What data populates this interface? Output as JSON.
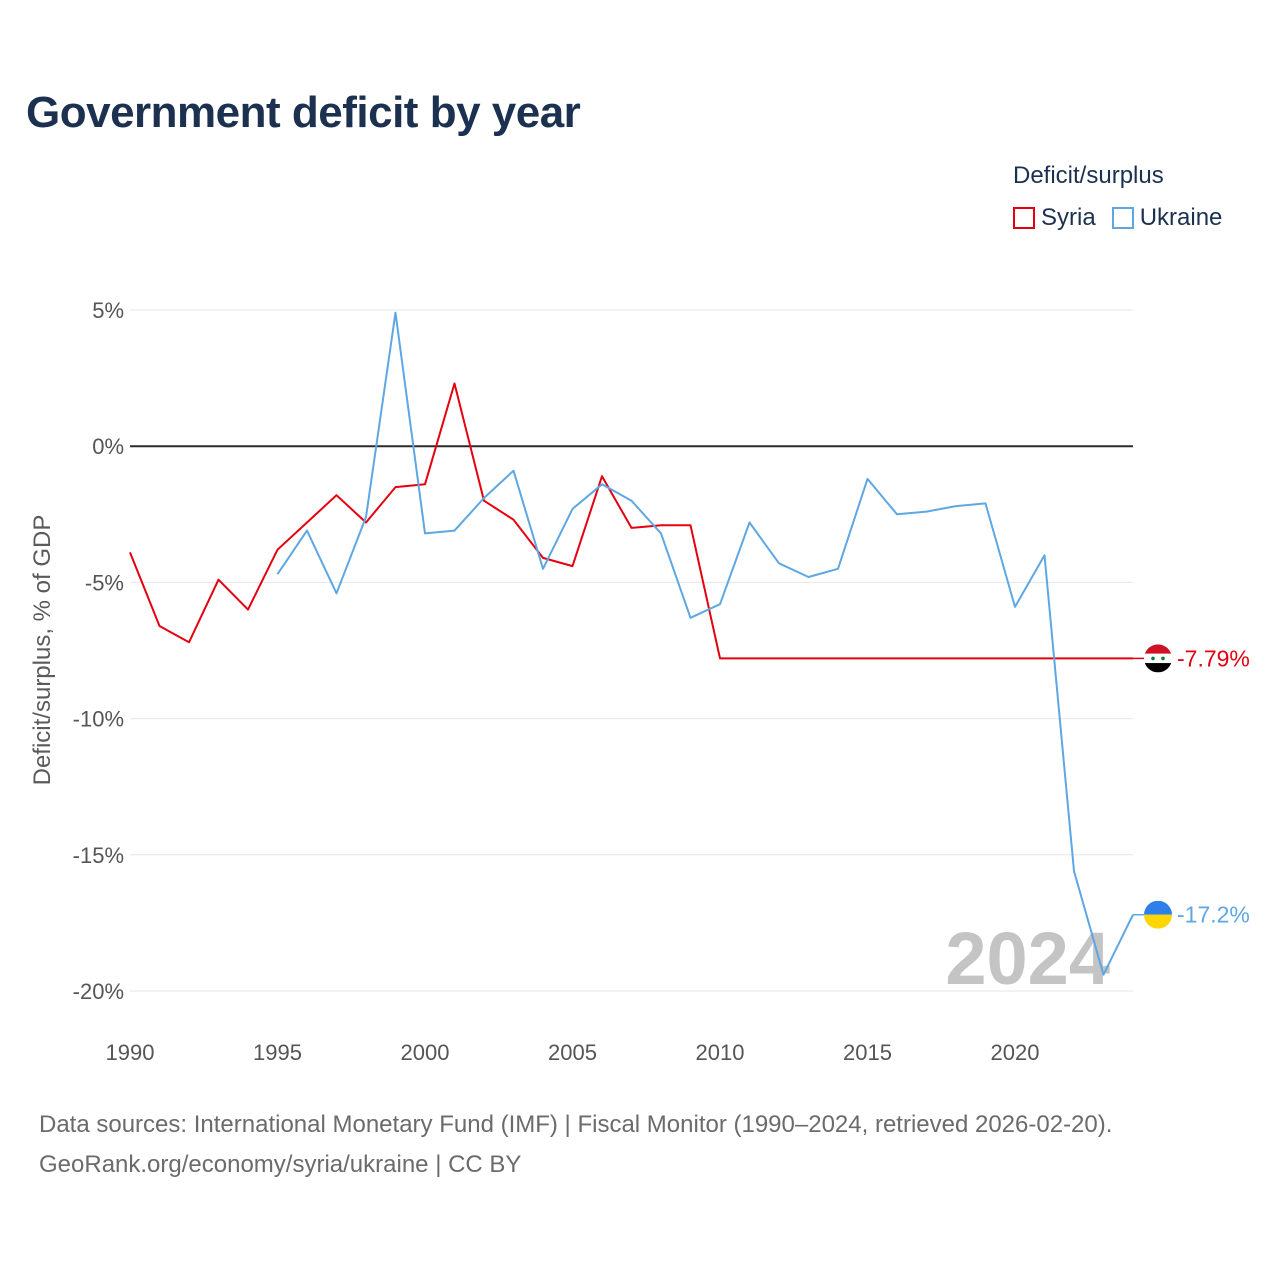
{
  "title": "Government deficit by year",
  "legend": {
    "title": "Deficit/surplus",
    "items": [
      {
        "name": "Syria",
        "color": "#e4000f"
      },
      {
        "name": "Ukraine",
        "color": "#5ea7e3"
      }
    ]
  },
  "source": {
    "line1": "Data sources: International Monetary Fund (IMF) | Fiscal Monitor (1990–2024, retrieved 2026-02-20).",
    "line2": "GeoRank.org/economy/syria/ukraine | CC BY"
  },
  "chart_data": {
    "type": "line",
    "title": "Government deficit by year",
    "xlabel": "",
    "ylabel": "Deficit/surplus, % of GDP",
    "xlim": [
      1990,
      2024
    ],
    "ylim": [
      -20,
      5
    ],
    "y_ticks": [
      5,
      0,
      -5,
      -10,
      -15,
      -20
    ],
    "y_tick_labels": [
      "5%",
      "0%",
      "-5%",
      "-10%",
      "-15%",
      "-20%"
    ],
    "x_ticks": [
      1990,
      1995,
      2000,
      2005,
      2010,
      2015,
      2020
    ],
    "x_tick_labels": [
      "1990",
      "1995",
      "2000",
      "2005",
      "2010",
      "2015",
      "2020"
    ],
    "year_watermark": "2024",
    "series": [
      {
        "name": "Syria",
        "color": "#e4000f",
        "end_label": "-7.79%",
        "flag": "syria-flag-icon",
        "x": [
          1990,
          1991,
          1992,
          1993,
          1994,
          1995,
          1996,
          1997,
          1998,
          1999,
          2000,
          2001,
          2002,
          2003,
          2004,
          2005,
          2006,
          2007,
          2008,
          2009,
          2010,
          2011,
          2012,
          2013,
          2014,
          2015,
          2016,
          2017,
          2018,
          2019,
          2020,
          2021,
          2022,
          2023,
          2024
        ],
        "values": [
          -3.9,
          -6.6,
          -7.2,
          -4.9,
          -6.0,
          -3.8,
          -2.8,
          -1.8,
          -2.8,
          -1.5,
          -1.4,
          2.3,
          -2.0,
          -2.7,
          -4.1,
          -4.4,
          -1.1,
          -3.0,
          -2.9,
          -2.9,
          -7.79,
          -7.79,
          -7.79,
          -7.79,
          -7.79,
          -7.79,
          -7.79,
          -7.79,
          -7.79,
          -7.79,
          -7.79,
          -7.79,
          -7.79,
          -7.79,
          -7.79
        ]
      },
      {
        "name": "Ukraine",
        "color": "#5ea7e3",
        "end_label": "-17.2%",
        "flag": "ukraine-flag-icon",
        "x": [
          1995,
          1996,
          1997,
          1998,
          1999,
          2000,
          2001,
          2002,
          2003,
          2004,
          2005,
          2006,
          2007,
          2008,
          2009,
          2010,
          2011,
          2012,
          2013,
          2014,
          2015,
          2016,
          2017,
          2018,
          2019,
          2020,
          2021,
          2022,
          2023,
          2024
        ],
        "values": [
          -4.7,
          -3.1,
          -5.4,
          -2.6,
          4.9,
          -3.2,
          -3.1,
          -1.9,
          -0.9,
          -4.5,
          -2.3,
          -1.4,
          -2.0,
          -3.2,
          -6.3,
          -5.8,
          -2.8,
          -4.3,
          -4.8,
          -4.5,
          -1.2,
          -2.5,
          -2.4,
          -2.2,
          -2.1,
          -5.9,
          -4.0,
          -15.6,
          -19.4,
          -17.2
        ]
      }
    ]
  }
}
